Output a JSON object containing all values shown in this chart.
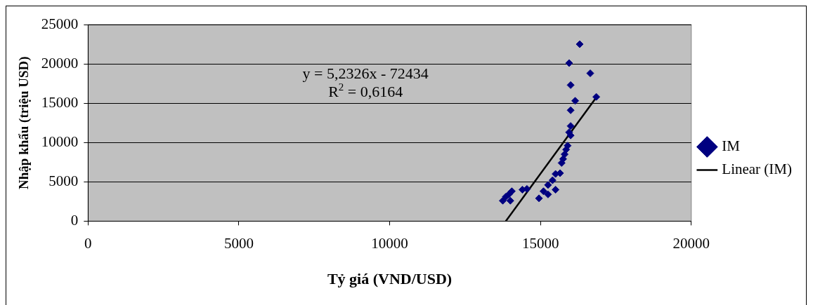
{
  "chart_data": {
    "type": "scatter",
    "xlabel": "Tỷ giá (VND/USD)",
    "ylabel": "Nhập khẩu (triệu USD)",
    "xlim": [
      0,
      20000
    ],
    "xticks": [
      0,
      5000,
      10000,
      15000,
      20000
    ],
    "ylim": [
      0,
      25000
    ],
    "yticks": [
      0,
      5000,
      10000,
      15000,
      20000,
      25000
    ],
    "grid": "y",
    "legend": "right",
    "marker": "diamond",
    "annotations": [
      "y = 5,2326x - 72434",
      "R$^{2}$ = 0,6164"
    ],
    "series": [
      {
        "name": "IM",
        "color": "#000080",
        "x": [
          16300,
          15950,
          16650,
          16000,
          16850,
          16150,
          16000,
          16000,
          15950,
          16000,
          15900,
          15850,
          15800,
          15750,
          15700,
          15650,
          15500,
          15400,
          15250,
          15500,
          15100,
          15250,
          14950,
          14550,
          14400,
          14050,
          13950,
          13850,
          13750,
          14000
        ],
        "values": [
          22500,
          20100,
          18800,
          17300,
          15800,
          15300,
          14100,
          12100,
          11300,
          10900,
          9600,
          9100,
          8500,
          7900,
          7400,
          6100,
          6000,
          5200,
          4600,
          4000,
          3800,
          3400,
          2900,
          4100,
          4000,
          3800,
          3400,
          3100,
          2600,
          2600
        ]
      },
      {
        "name": "Linear (IM)",
        "type": "line",
        "color": "#000000",
        "marker": "none",
        "x": [
          13850,
          16900
        ],
        "values": [
          0,
          16000
        ]
      }
    ]
  }
}
